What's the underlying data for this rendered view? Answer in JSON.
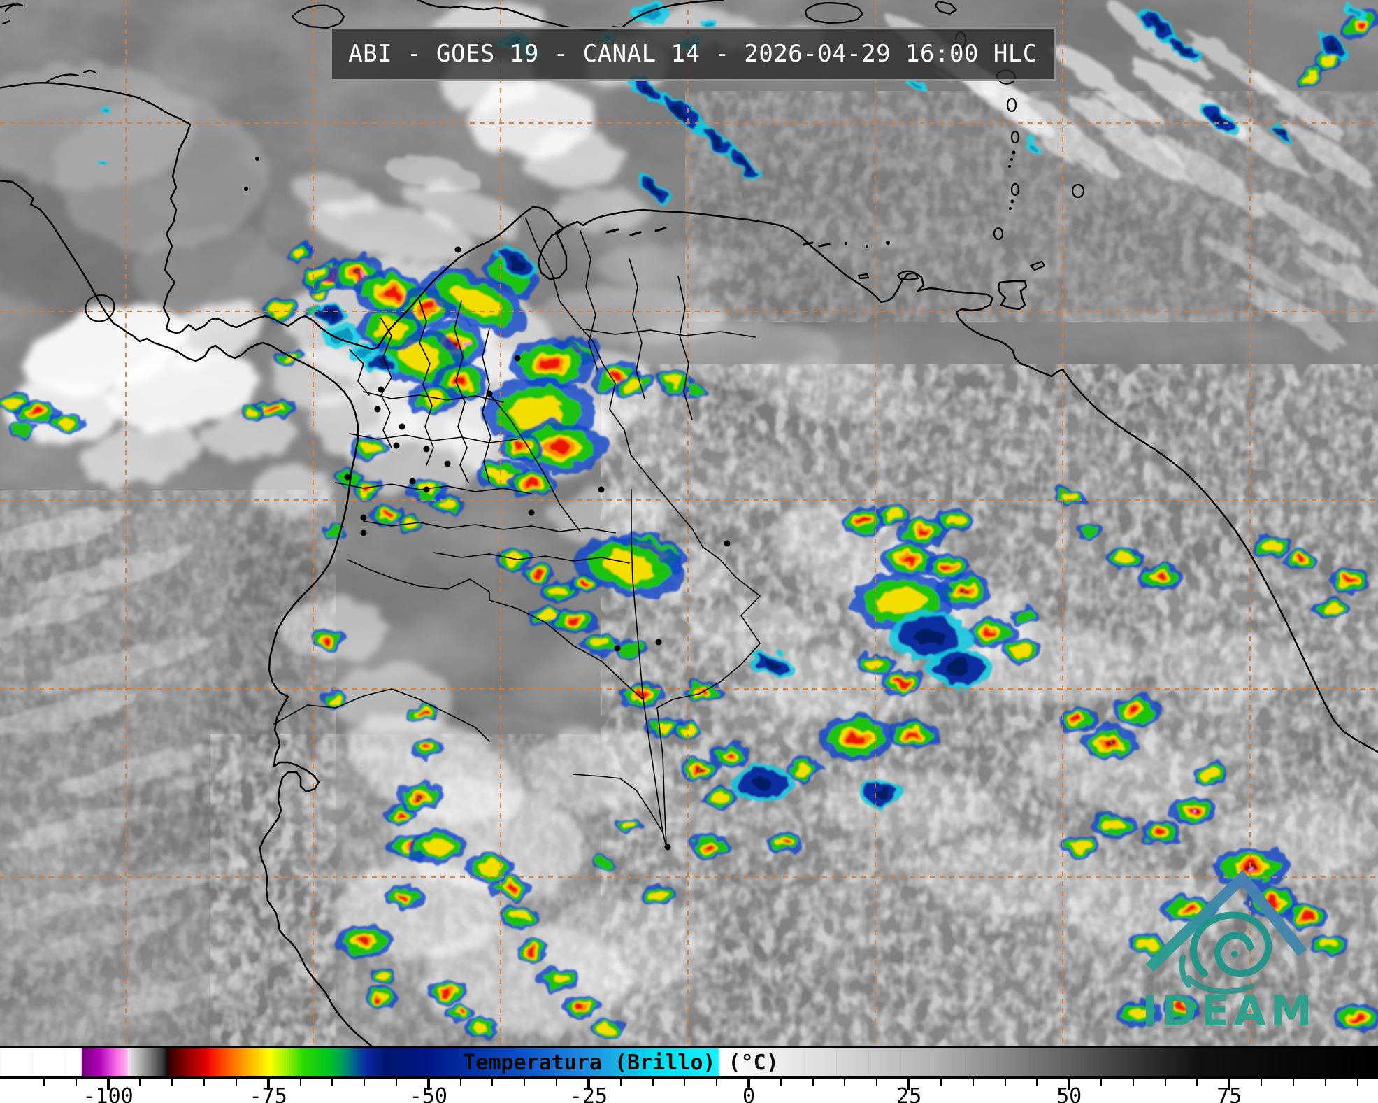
{
  "header": {
    "title": "ABI - GOES 19 - CANAL 14 - 2026-04-29 16:00 HLC"
  },
  "satellite": {
    "sensor": "ABI",
    "satellite": "GOES 19",
    "channel": "CANAL 14",
    "datetime": "2026-04-29 16:00",
    "timezone": "HLC"
  },
  "colorbar": {
    "label": "Temperatura (Brillo) (°C)",
    "unit": "°C",
    "major_ticks": [
      {
        "v": -100,
        "label": "-100"
      },
      {
        "v": -75,
        "label": "-75"
      },
      {
        "v": -50,
        "label": "-50"
      },
      {
        "v": -25,
        "label": "-25"
      },
      {
        "v": 0,
        "label": "0"
      },
      {
        "v": 25,
        "label": "25"
      },
      {
        "v": 50,
        "label": "50"
      },
      {
        "v": 75,
        "label": "75"
      }
    ],
    "minor_tick_step": 5,
    "stops": [
      {
        "p": 0.0,
        "c": "#ffffff"
      },
      {
        "p": 5.9,
        "c": "#ffffff"
      },
      {
        "p": 5.95,
        "c": "#73007c"
      },
      {
        "p": 7.2,
        "c": "#b000b8"
      },
      {
        "p": 8.6,
        "c": "#ff78e8"
      },
      {
        "p": 9.25,
        "c": "#ffb4f0"
      },
      {
        "p": 9.3,
        "c": "#e9e9e9"
      },
      {
        "p": 10.5,
        "c": "#9a9a9a"
      },
      {
        "p": 11.8,
        "c": "#3a3a3a"
      },
      {
        "p": 12.15,
        "c": "#0d0d0d"
      },
      {
        "p": 12.2,
        "c": "#2e0000"
      },
      {
        "p": 13.5,
        "c": "#8a0000"
      },
      {
        "p": 15.0,
        "c": "#e90000"
      },
      {
        "p": 15.7,
        "c": "#ff2a00"
      },
      {
        "p": 17.4,
        "c": "#ff9000"
      },
      {
        "p": 19.1,
        "c": "#ffe600"
      },
      {
        "p": 19.6,
        "c": "#fcff00"
      },
      {
        "p": 21.0,
        "c": "#8aef00"
      },
      {
        "p": 22.0,
        "c": "#2ad800"
      },
      {
        "p": 23.8,
        "c": "#00c81e"
      },
      {
        "p": 24.8,
        "c": "#009e5e"
      },
      {
        "p": 25.8,
        "c": "#005f8f"
      },
      {
        "p": 26.6,
        "c": "#0a28a0"
      },
      {
        "p": 28.0,
        "c": "#001670"
      },
      {
        "p": 31.0,
        "c": "#001684"
      },
      {
        "p": 34.0,
        "c": "#0030a8"
      },
      {
        "p": 38.0,
        "c": "#0c53c8"
      },
      {
        "p": 42.0,
        "c": "#1e86e0"
      },
      {
        "p": 45.0,
        "c": "#19b4e6"
      },
      {
        "p": 47.5,
        "c": "#00dff0"
      },
      {
        "p": 52.1,
        "c": "#18f0ff"
      },
      {
        "p": 52.25,
        "c": "#ffffff"
      },
      {
        "p": 60.0,
        "c": "#dcdcdc"
      },
      {
        "p": 68.0,
        "c": "#b0b0b0"
      },
      {
        "p": 76.0,
        "c": "#6e6e6e"
      },
      {
        "p": 82.0,
        "c": "#3a3a3a"
      },
      {
        "p": 87.0,
        "c": "#111111"
      },
      {
        "p": 100.0,
        "c": "#000000"
      }
    ]
  },
  "logo": {
    "text": "IDEAM",
    "colors": {
      "roof_top": "#4a7fb7",
      "roof_end": "#2a9d8f",
      "swirl": "#1f9489",
      "text": "#2aa18b"
    }
  },
  "map": {
    "background": "#868686",
    "graticule_color": "#e07b28",
    "coastline_color": "#000000"
  }
}
